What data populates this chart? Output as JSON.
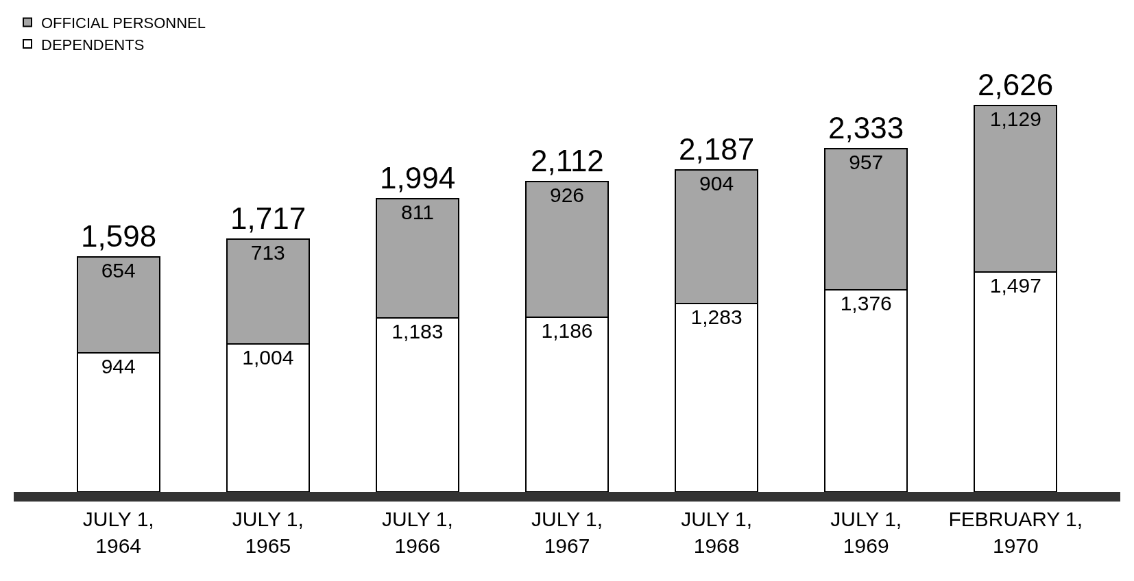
{
  "chart_data": {
    "type": "bar",
    "stacked": true,
    "categories": [
      "JULY 1,\n1964",
      "JULY 1,\n1965",
      "JULY 1,\n1966",
      "JULY 1,\n1967",
      "JULY 1,\n1968",
      "JULY 1,\n1969",
      "FEBRUARY 1,\n1970"
    ],
    "series": [
      {
        "name": "DEPENDENTS",
        "color": "#ffffff",
        "values": [
          944,
          1004,
          1183,
          1186,
          1283,
          1376,
          1497
        ],
        "value_labels": [
          "944",
          "1,004",
          "1,183",
          "1,186",
          "1,283",
          "1,376",
          "1,497"
        ]
      },
      {
        "name": "OFFICIAL PERSONNEL",
        "color": "#a6a6a6",
        "values": [
          654,
          713,
          811,
          926,
          904,
          957,
          1129
        ],
        "value_labels": [
          "654",
          "713",
          "811",
          "926",
          "904",
          "957",
          "1,129"
        ]
      }
    ],
    "totals": [
      "1,598",
      "1,717",
      "1,994",
      "2,112",
      "2,187",
      "2,333",
      "2,626"
    ],
    "legend": "top left"
  }
}
